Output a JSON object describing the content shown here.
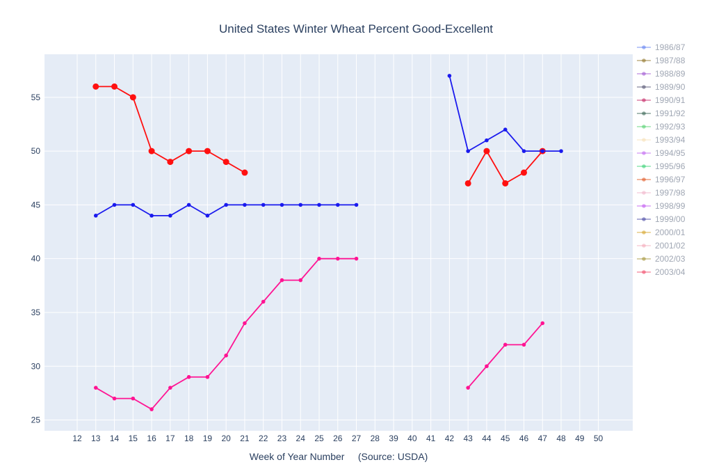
{
  "chart_data": {
    "type": "line",
    "title": "United States Winter Wheat Percent Good-Excellent",
    "xlabel": "Week of Year Number     (Source: USDA)",
    "ylabel": "",
    "x_categories": [
      "12",
      "13",
      "14",
      "15",
      "16",
      "17",
      "18",
      "19",
      "20",
      "21",
      "22",
      "23",
      "24",
      "25",
      "26",
      "27",
      "28",
      "39",
      "40",
      "41",
      "42",
      "43",
      "44",
      "45",
      "46",
      "47",
      "48",
      "49",
      "50"
    ],
    "y_ticks": [
      25,
      30,
      35,
      40,
      45,
      50,
      55
    ],
    "ylim": [
      24,
      59
    ],
    "grid": true,
    "legend_position": "right",
    "legend": [
      {
        "name": "1986/87",
        "color": "#5b7bf0"
      },
      {
        "name": "1987/88",
        "color": "#8a6d1e"
      },
      {
        "name": "1988/89",
        "color": "#9a4fd0"
      },
      {
        "name": "1989/90",
        "color": "#4a4a6a"
      },
      {
        "name": "1990/91",
        "color": "#c2185b"
      },
      {
        "name": "1991/92",
        "color": "#2e5d4a"
      },
      {
        "name": "1992/93",
        "color": "#4cd06a"
      },
      {
        "name": "1993/94",
        "color": "#f5deb3"
      },
      {
        "name": "1994/95",
        "color": "#c060f0"
      },
      {
        "name": "1995/96",
        "color": "#30d070"
      },
      {
        "name": "1996/97",
        "color": "#e0501a"
      },
      {
        "name": "1997/98",
        "color": "#f0b0c8"
      },
      {
        "name": "1998/99",
        "color": "#c050f0"
      },
      {
        "name": "1999/00",
        "color": "#4040a0"
      },
      {
        "name": "2000/01",
        "color": "#d4a020"
      },
      {
        "name": "2001/02",
        "color": "#f4a8b8"
      },
      {
        "name": "2002/03",
        "color": "#a09030"
      },
      {
        "name": "2003/04",
        "color": "#f04060"
      }
    ],
    "series": [
      {
        "color": "#ff1010",
        "marker_size": 4.5,
        "segments": [
          {
            "x": [
              "13",
              "14",
              "15",
              "16",
              "17",
              "18",
              "19",
              "20",
              "21"
            ],
            "y": [
              56,
              56,
              55,
              50,
              49,
              50,
              50,
              49,
              48
            ]
          },
          {
            "x": [
              "43",
              "44",
              "45",
              "46",
              "47"
            ],
            "y": [
              47,
              50,
              47,
              48,
              50
            ]
          }
        ]
      },
      {
        "color": "#1a1aee",
        "marker_size": 2.8,
        "segments": [
          {
            "x": [
              "13",
              "14",
              "15",
              "16",
              "17",
              "18",
              "19",
              "20",
              "21",
              "22",
              "23",
              "24",
              "25",
              "26",
              "27"
            ],
            "y": [
              44,
              45,
              45,
              44,
              44,
              45,
              44,
              45,
              45,
              45,
              45,
              45,
              45,
              45,
              45
            ]
          },
          {
            "x": [
              "42",
              "43",
              "44",
              "45",
              "46",
              "47",
              "48"
            ],
            "y": [
              57,
              50,
              51,
              52,
              50,
              50,
              50
            ]
          }
        ]
      },
      {
        "color": "#ff1493",
        "marker_size": 2.8,
        "segments": [
          {
            "x": [
              "13",
              "14",
              "15",
              "16",
              "17",
              "18",
              "19",
              "20",
              "21",
              "22",
              "23",
              "24",
              "25",
              "26",
              "27"
            ],
            "y": [
              28,
              27,
              27,
              26,
              28,
              29,
              29,
              31,
              34,
              36,
              38,
              38,
              40,
              40,
              40
            ]
          },
          {
            "x": [
              "43",
              "44",
              "45",
              "46",
              "47"
            ],
            "y": [
              28,
              30,
              32,
              32,
              34
            ]
          }
        ]
      }
    ]
  }
}
